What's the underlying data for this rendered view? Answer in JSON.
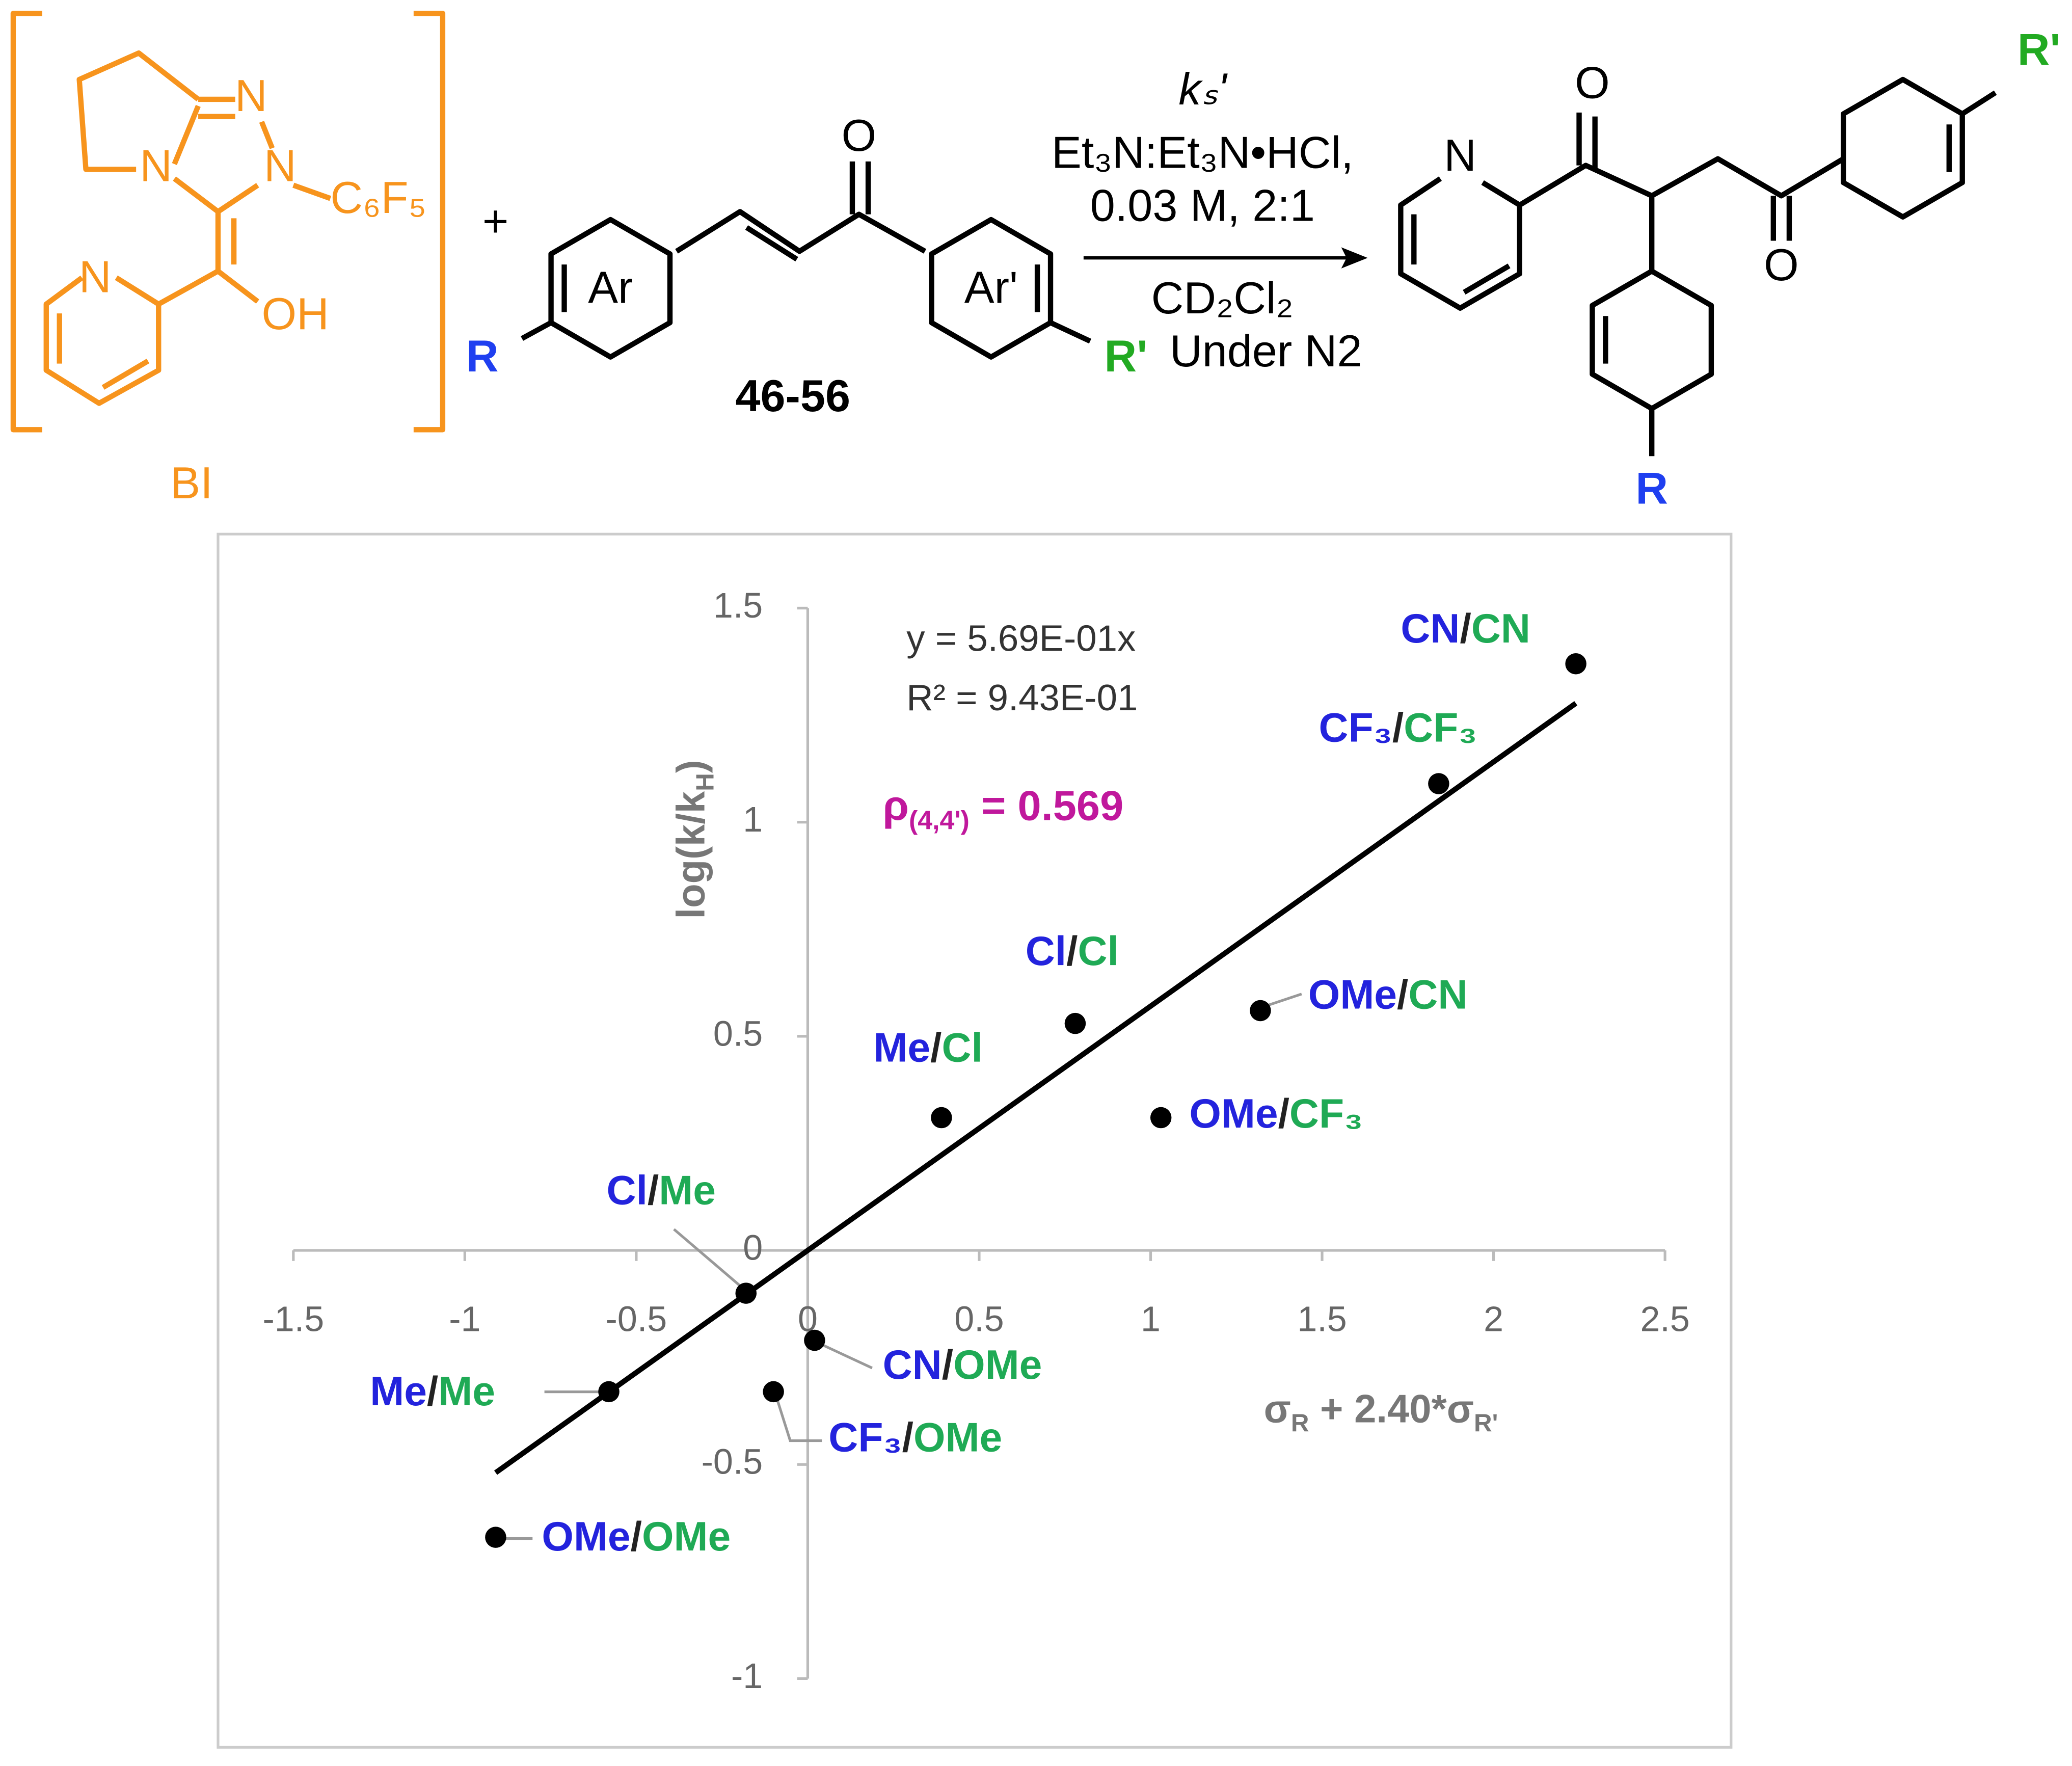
{
  "scheme": {
    "reagent_label": "BI",
    "n1": "N",
    "n2": "N",
    "n3": "N",
    "c6f5": "C₆F₅",
    "oh": "OH",
    "py_n": "N",
    "plus": "+",
    "ar": "Ar",
    "ar_prime": "Ar'",
    "r": "R",
    "r_prime": "R'",
    "o": "O",
    "compound": "46-56",
    "rate": "kₛ'",
    "cond1": "Et₃N:Et₃N•HCl,",
    "cond2": "0.03 M, 2:1",
    "solvent": "CD₂Cl₂",
    "atmosphere": "Under N2",
    "prod_n": "N",
    "prod_o1": "O",
    "prod_o2": "O",
    "prod_r": "R",
    "prod_r_prime": "R'"
  },
  "chart_data": {
    "type": "scatter",
    "x": [
      2.24,
      1.84,
      0.78,
      1.32,
      0.39,
      1.03,
      -0.18,
      0.02,
      -0.1,
      -0.58,
      -0.91
    ],
    "values": [
      1.37,
      1.09,
      0.53,
      0.56,
      0.31,
      0.31,
      -0.1,
      -0.21,
      -0.33,
      -0.33,
      -0.67
    ],
    "color": "#000000",
    "point_labels": [
      {
        "r": "CN",
        "r_prime": "CN"
      },
      {
        "r": "CF₃",
        "r_prime": "CF₃"
      },
      {
        "r": "Cl",
        "r_prime": "Cl"
      },
      {
        "r": "OMe",
        "r_prime": "CN"
      },
      {
        "r": "Me",
        "r_prime": "Cl"
      },
      {
        "r": "OMe",
        "r_prime": "CF₃"
      },
      {
        "r": "Cl",
        "r_prime": "Me"
      },
      {
        "r": "CN",
        "r_prime": "OMe"
      },
      {
        "r": "CF₃",
        "r_prime": "OMe"
      },
      {
        "r": "Me",
        "r_prime": "Me"
      },
      {
        "r": "OMe",
        "r_prime": "OMe"
      }
    ],
    "separator": "/",
    "r_color": "#2323dd",
    "r_prime_color": "#1faa55",
    "xlim": [
      -1.5,
      2.5
    ],
    "xticks": [
      -1.5,
      -1,
      -0.5,
      0,
      0.5,
      1,
      1.5,
      2,
      2.5
    ],
    "ylim": [
      -1,
      1.5
    ],
    "yticks": [
      -1,
      -0.5,
      0,
      0.5,
      1,
      1.5
    ],
    "trendline": true,
    "x_label": [
      "σ",
      "R",
      " + 2.40*σ",
      "R'"
    ],
    "y_label": [
      "log(k/k",
      "H",
      ")"
    ],
    "equation": "y = 5.69E-01x",
    "r_squared": "R² = 9.43E-01",
    "rho": [
      "ρ",
      "(4,4')",
      " = 0.569"
    ]
  }
}
